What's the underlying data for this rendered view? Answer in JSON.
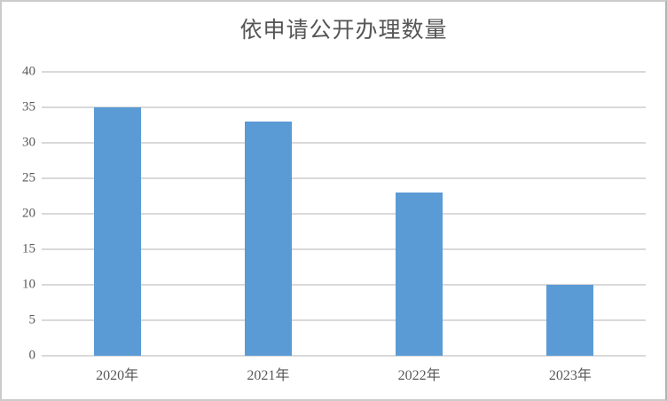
{
  "chart": {
    "title": "依申请公开办理数量",
    "bar_color": "#5B9BD5",
    "gridline_color": "#D9D9D9",
    "text_color": "#595959",
    "border_color": "#CBCBCB"
  },
  "chart_data": {
    "type": "bar",
    "title": "依申请公开办理数量",
    "categories": [
      "2020年",
      "2021年",
      "2022年",
      "2023年"
    ],
    "values": [
      35,
      33,
      23,
      10
    ],
    "xlabel": "",
    "ylabel": "",
    "ylim": [
      0,
      40
    ],
    "ytick_step": 5,
    "yticks": [
      0,
      5,
      10,
      15,
      20,
      25,
      30,
      35,
      40
    ],
    "grid": true,
    "legend": false
  }
}
